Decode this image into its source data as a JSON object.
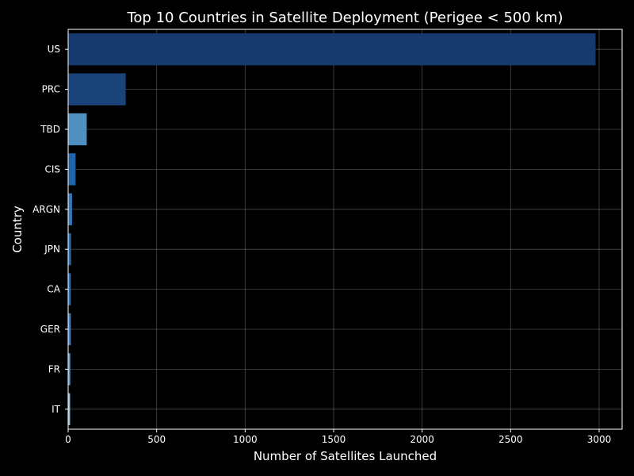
{
  "chart_data": {
    "type": "bar",
    "orientation": "horizontal",
    "title": "Top 10 Countries in Satellite Deployment (Perigee < 500 km)",
    "xlabel": "Number of Satellites Launched",
    "ylabel": "Country",
    "categories": [
      "US",
      "PRC",
      "TBD",
      "CIS",
      "ARGN",
      "JPN",
      "CA",
      "GER",
      "FR",
      "IT"
    ],
    "values": [
      2980,
      325,
      105,
      42,
      22,
      16,
      15,
      15,
      12,
      11
    ],
    "colors": [
      "#163a6d",
      "#1a4479",
      "#4f8fc0",
      "#2163a6",
      "#3578b6",
      "#2a6aad",
      "#2d6cae",
      "#3f7fbb",
      "#5a9ac8",
      "#8cbdde"
    ],
    "xlim": [
      0,
      3130
    ],
    "xticks": [
      0,
      500,
      1000,
      1500,
      2000,
      2500,
      3000
    ],
    "grid": true,
    "background": "#000000",
    "text_color": "#ffffff"
  }
}
